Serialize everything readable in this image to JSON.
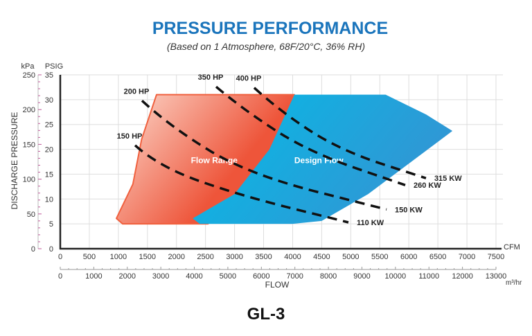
{
  "colors": {
    "title": "#1b75bc",
    "flow_range_light": "#fcdcd0",
    "flow_range_dark": "#ee553a",
    "flow_range_edge": "#f0603e",
    "design_light": "#0db4e3",
    "design_dark": "#3196d4",
    "grid": "#dddddd",
    "kpa_ticks": "#c0589a"
  },
  "chart_data": {
    "type": "area",
    "title": "PRESSURE PERFORMANCE",
    "subtitle": "(Based on 1 Atmosphere, 68F/20°C, 36% RH)",
    "model": "GL-3",
    "xlabel": "FLOW",
    "ylabel": "DISCHARGE PRESSURE",
    "x_unit_primary": "CFM",
    "x_unit_secondary": "m³/hr",
    "y_unit_primary": "PSIG",
    "y_unit_secondary": "kPa",
    "xlim": [
      0,
      7500
    ],
    "ylim": [
      0,
      35
    ],
    "x2lim": [
      0,
      13000
    ],
    "y2lim": [
      0,
      250
    ],
    "grid": true,
    "x_ticks": [
      0,
      500,
      1000,
      1500,
      2000,
      2500,
      3000,
      3500,
      4000,
      4500,
      5000,
      5500,
      6000,
      6500,
      7000,
      7500
    ],
    "x2_ticks": [
      0,
      1000,
      2000,
      3000,
      4000,
      5000,
      6000,
      7000,
      8000,
      9000,
      10000,
      11000,
      12000,
      13000
    ],
    "y_ticks": [
      0,
      5,
      10,
      15,
      20,
      25,
      30,
      35
    ],
    "y2_ticks": [
      0,
      50,
      100,
      150,
      200,
      250
    ],
    "regions": [
      {
        "name": "Flow Range",
        "points": [
          [
            966,
            6.1
          ],
          [
            1073,
            5
          ],
          [
            2540,
            5
          ],
          [
            3300,
            10
          ],
          [
            3750,
            20
          ],
          [
            4030,
            31
          ],
          [
            1657,
            31
          ],
          [
            1400,
            22
          ],
          [
            1250,
            13
          ]
        ]
      },
      {
        "name": "Design Flow",
        "points": [
          [
            2280,
            6.1
          ],
          [
            3000,
            11
          ],
          [
            3600,
            20
          ],
          [
            4030,
            31
          ],
          [
            5600,
            31
          ],
          [
            6300,
            27
          ],
          [
            6750,
            23.7
          ],
          [
            5300,
            11
          ],
          [
            4500,
            5.6
          ],
          [
            4000,
            5
          ],
          [
            2400,
            5
          ]
        ]
      }
    ],
    "series": [
      {
        "name": "150 HP",
        "end_label": "110 KW",
        "points": [
          [
            1288,
            20.8
          ],
          [
            1700,
            16.5
          ],
          [
            3100,
            10.7
          ],
          [
            4960,
            5.3
          ]
        ]
      },
      {
        "name": "200 HP",
        "end_label": "150 KW",
        "points": [
          [
            1407,
            29.8
          ],
          [
            1900,
            24.5
          ],
          [
            3255,
            14.9
          ],
          [
            5616,
            7.9
          ]
        ]
      },
      {
        "name": "350 HP",
        "end_label": "260 KW",
        "points": [
          [
            2683,
            32.6
          ],
          [
            3150,
            28
          ],
          [
            4292,
            19.4
          ],
          [
            5938,
            12.8
          ]
        ]
      },
      {
        "name": "400 HP",
        "end_label": "315 KW",
        "points": [
          [
            3338,
            32.4
          ],
          [
            3800,
            27.5
          ],
          [
            4840,
            19.7
          ],
          [
            6295,
            14.2
          ]
        ]
      }
    ]
  }
}
